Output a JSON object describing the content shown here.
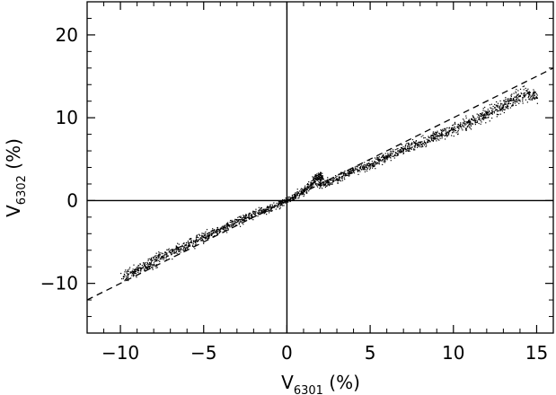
{
  "chart_data": {
    "type": "scatter",
    "title": "",
    "xlabel_main": "V",
    "xlabel_sub": "6301",
    "xlabel_unit": " (%)",
    "ylabel_main": "V",
    "ylabel_sub": "6302",
    "ylabel_unit": " (%)",
    "xlim": [
      -12,
      16
    ],
    "ylim": [
      -16,
      24
    ],
    "xticks": [
      -10,
      -5,
      0,
      5,
      10,
      15
    ],
    "xtick_labels": [
      "−10",
      "−5",
      "0",
      "5",
      "10",
      "15"
    ],
    "yticks": [
      -10,
      0,
      10,
      20
    ],
    "ytick_labels": [
      "−10",
      "0",
      "10",
      "20"
    ],
    "grid": false,
    "legend": "none",
    "reference_lines": [
      {
        "name": "x = 0",
        "style": "solid"
      },
      {
        "name": "y = 0",
        "style": "solid"
      },
      {
        "name": "y = x",
        "style": "dashed"
      }
    ],
    "series": [
      {
        "name": "",
        "trend": {
          "slope": 0.86,
          "intercept": 0.0
        },
        "x_range": [
          -10,
          15
        ],
        "points": [
          [
            -9.8,
            -9.2
          ],
          [
            -9.2,
            -8.6
          ],
          [
            -8.5,
            -8.0
          ],
          [
            -7.5,
            -6.8
          ],
          [
            -6.5,
            -5.9
          ],
          [
            -5.5,
            -4.9
          ],
          [
            -4.5,
            -4.0
          ],
          [
            -3.5,
            -3.0
          ],
          [
            -2.5,
            -2.1
          ],
          [
            -1.5,
            -1.3
          ],
          [
            -0.5,
            -0.5
          ],
          [
            0.0,
            0.0
          ],
          [
            0.5,
            0.5
          ],
          [
            1.0,
            1.2
          ],
          [
            1.5,
            2.0
          ],
          [
            2.0,
            3.2
          ],
          [
            2.0,
            1.8
          ],
          [
            3.0,
            2.6
          ],
          [
            4.0,
            3.6
          ],
          [
            5.0,
            4.3
          ],
          [
            6.0,
            5.3
          ],
          [
            7.0,
            6.2
          ],
          [
            8.0,
            7.0
          ],
          [
            9.0,
            7.8
          ],
          [
            10.0,
            8.6
          ],
          [
            11.0,
            9.5
          ],
          [
            12.0,
            10.5
          ],
          [
            13.0,
            11.5
          ],
          [
            14.0,
            12.6
          ],
          [
            14.5,
            13.0
          ],
          [
            15.0,
            12.4
          ]
        ]
      }
    ]
  }
}
